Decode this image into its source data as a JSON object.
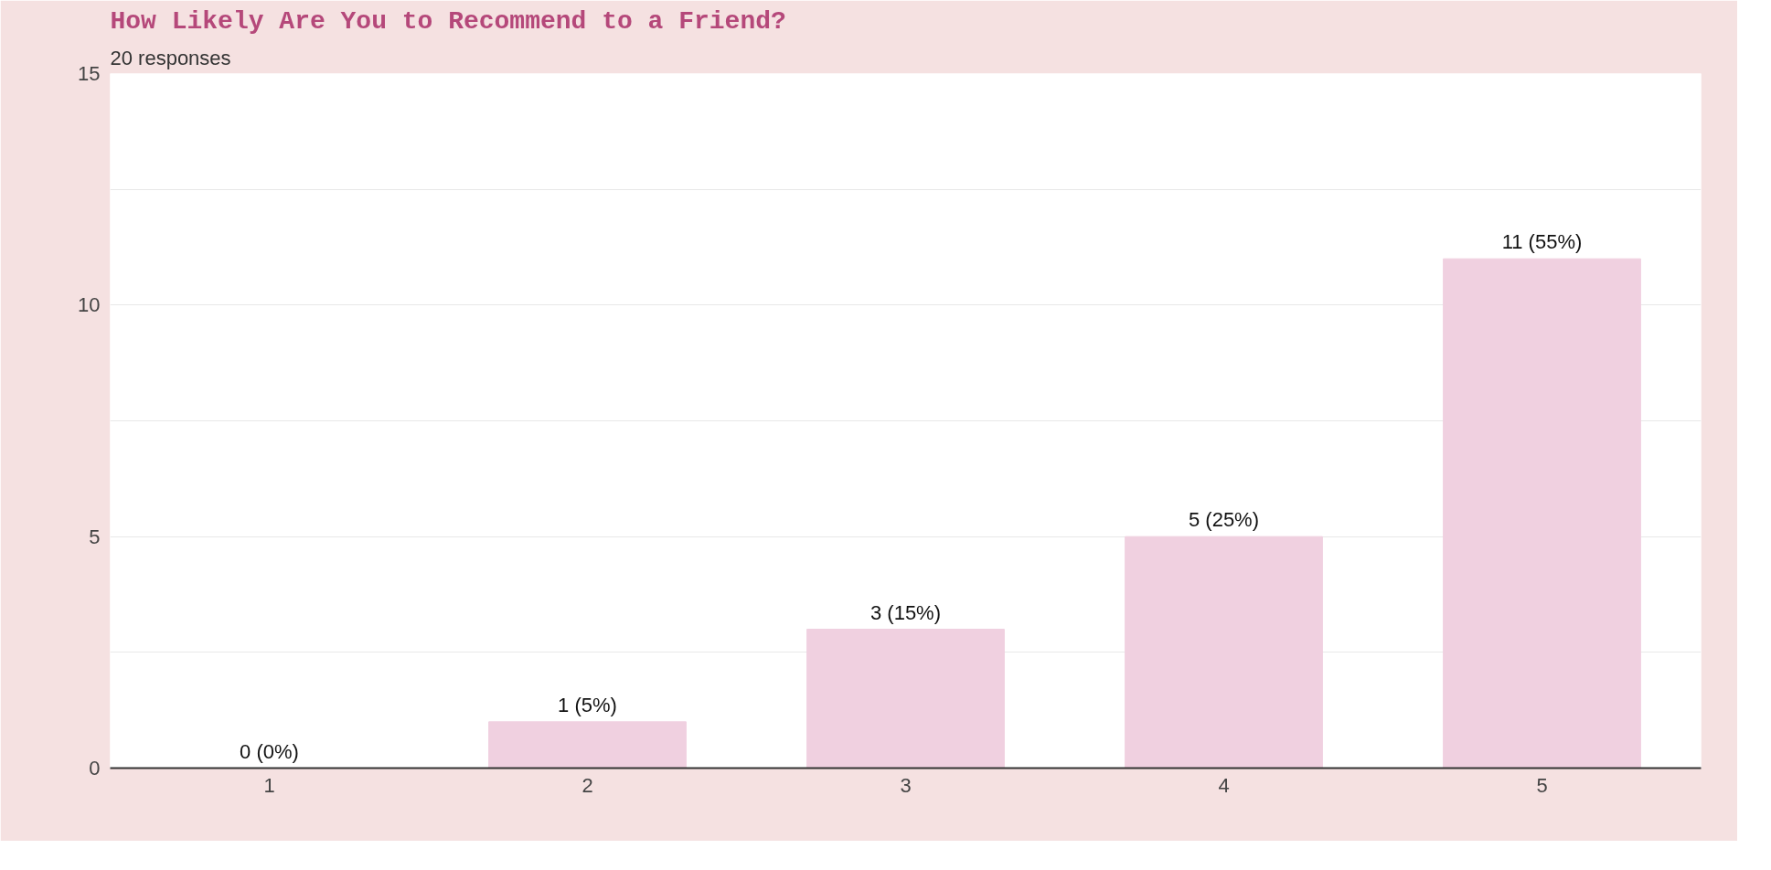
{
  "chart_data": {
    "type": "bar",
    "title": "How Likely Are You to Recommend to a Friend?",
    "subtitle": "20 responses",
    "categories": [
      "1",
      "2",
      "3",
      "4",
      "5"
    ],
    "values": [
      0,
      1,
      3,
      5,
      11
    ],
    "value_labels": [
      "0 (0%)",
      "1 (5%)",
      "3 (15%)",
      "5 (25%)",
      "11 (55%)"
    ],
    "color": "#f0d0e0",
    "ylim": [
      0,
      15
    ],
    "yticks": [
      0,
      {
        "value": 2.5,
        "label": null
      },
      5,
      {
        "value": 7.5,
        "label": null
      },
      10,
      {
        "value": 12.5,
        "label": null
      },
      15
    ],
    "grid": "y"
  }
}
